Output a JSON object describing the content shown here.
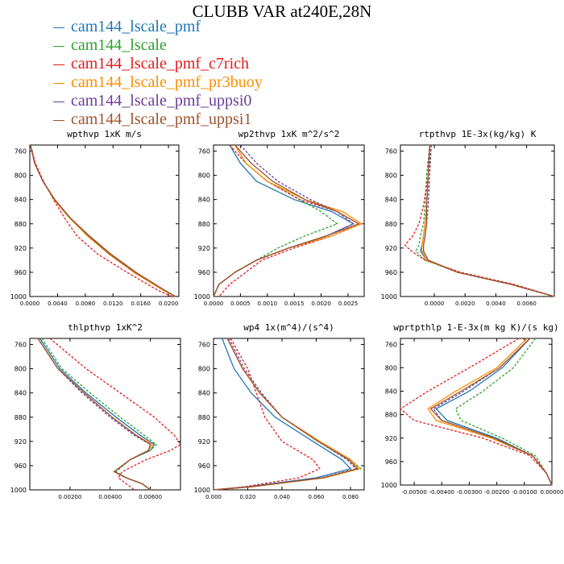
{
  "title": "CLUBB VAR at240E,28N",
  "legend": [
    {
      "label": "cam144_lscale_pmf",
      "color": "#1f77b4"
    },
    {
      "label": "cam144_lscale",
      "color": "#2ca02c"
    },
    {
      "label": "cam144_lscale_pmf_c7rich",
      "color": "#e41a1c"
    },
    {
      "label": "cam144_lscale_pmf_pr3buoy",
      "color": "#ff8c00"
    },
    {
      "label": "cam144_lscale_pmf_uppsi0",
      "color": "#6a3d9a"
    },
    {
      "label": "cam144_lscale_pmf_uppsi1",
      "color": "#a0522d"
    }
  ],
  "y_ticks": [
    "760",
    "800",
    "840",
    "880",
    "920",
    "960",
    "1000"
  ],
  "chart_data": [
    {
      "type": "line",
      "title": "wpthvp   1xK m/s",
      "ylim": [
        750,
        1000
      ],
      "y_reversed": true,
      "xlim": [
        0,
        0.0215
      ],
      "x_ticks": [
        0,
        0.004,
        0.008,
        0.012,
        0.016,
        0.02
      ],
      "x_tick_labels": [
        "0.0000",
        "0.0040",
        "0.0080",
        "0.0120",
        "0.0160",
        "0.0200"
      ],
      "y": [
        750,
        780,
        810,
        840,
        870,
        900,
        930,
        960,
        990,
        1000
      ],
      "series": [
        {
          "values": [
            0.0001,
            0.0007,
            0.0019,
            0.0036,
            0.0058,
            0.0085,
            0.0116,
            0.0152,
            0.0195,
            0.021
          ]
        },
        {
          "values": [
            0.0001,
            0.0007,
            0.0019,
            0.0035,
            0.0057,
            0.0084,
            0.0114,
            0.015,
            0.0193,
            0.021
          ]
        },
        {
          "values": [
            0.0001,
            0.0008,
            0.002,
            0.0034,
            0.005,
            0.0068,
            0.0098,
            0.014,
            0.0185,
            0.0205
          ],
          "dashed": true
        },
        {
          "values": [
            0.0001,
            0.0007,
            0.0019,
            0.0035,
            0.0057,
            0.0083,
            0.0114,
            0.015,
            0.0193,
            0.021
          ]
        },
        {
          "values": [
            0.0001,
            0.0007,
            0.0019,
            0.0036,
            0.0058,
            0.0085,
            0.0116,
            0.0152,
            0.0195,
            0.021
          ],
          "dashed": true
        },
        {
          "values": [
            0.0001,
            0.0007,
            0.0019,
            0.0036,
            0.0058,
            0.0086,
            0.0117,
            0.0153,
            0.0195,
            0.021
          ]
        }
      ]
    },
    {
      "type": "line",
      "title": "wp2thvp   1xK m^2/s^2",
      "ylim": [
        750,
        1000
      ],
      "y_reversed": true,
      "xlim": [
        0,
        0.0028
      ],
      "x_ticks": [
        0,
        0.0005,
        0.001,
        0.0015,
        0.002,
        0.0025
      ],
      "x_tick_labels": [
        "0.0000",
        "0.0005",
        "0.0010",
        "0.0015",
        "0.0020",
        "0.0025"
      ],
      "y": [
        750,
        780,
        810,
        840,
        860,
        880,
        900,
        920,
        940,
        960,
        980,
        1000
      ],
      "series": [
        {
          "values": [
            0.0003,
            0.0005,
            0.0008,
            0.0015,
            0.0022,
            0.0026,
            0.0021,
            0.0014,
            0.0008,
            0.0004,
            0.0001,
            0
          ]
        },
        {
          "values": [
            0.0004,
            0.0006,
            0.001,
            0.0016,
            0.002,
            0.0023,
            0.0017,
            0.0012,
            0.0008,
            0.0004,
            0.0001,
            0
          ],
          "dashed": true
        },
        {
          "values": [
            0.0003,
            0.0006,
            0.001,
            0.0016,
            0.0023,
            0.0027,
            0.0022,
            0.0015,
            0.0009,
            0.0006,
            0.0003,
            0.0001
          ],
          "dashed": true
        },
        {
          "values": [
            0.0004,
            0.0006,
            0.001,
            0.0017,
            0.0024,
            0.00275,
            0.0022,
            0.0014,
            0.0008,
            0.0004,
            0.0001,
            0
          ]
        },
        {
          "values": [
            0.0005,
            0.0008,
            0.0012,
            0.0018,
            0.0023,
            0.0026,
            0.0021,
            0.0014,
            0.0008,
            0.0004,
            0.0001,
            0
          ],
          "dashed": true
        },
        {
          "values": [
            0.0004,
            0.0007,
            0.0011,
            0.0017,
            0.0023,
            0.0027,
            0.0021,
            0.0014,
            0.0008,
            0.0004,
            0.0001,
            0
          ]
        }
      ]
    },
    {
      "type": "line",
      "title": "rtpthvp   1E-3x(kg/kg) K",
      "ylim": [
        750,
        1000
      ],
      "y_reversed": true,
      "xlim": [
        -0.0022,
        0.0078
      ],
      "x_ticks": [
        0,
        0.002,
        0.004,
        0.006
      ],
      "x_tick_labels": [
        "0.0000",
        "0.0020",
        "0.0040",
        "0.0060"
      ],
      "y": [
        750,
        800,
        850,
        880,
        900,
        915,
        925,
        940,
        960,
        980,
        1000
      ],
      "series": [
        {
          "values": [
            -0.0003,
            -0.0004,
            -0.0005,
            -0.0006,
            -0.0007,
            -0.0008,
            -0.0009,
            -0.0005,
            0.0015,
            0.005,
            0.0078
          ]
        },
        {
          "values": [
            -0.0003,
            -0.0005,
            -0.0006,
            -0.0007,
            -0.0009,
            -0.001,
            -0.0012,
            -0.0006,
            0.0015,
            0.005,
            0.0078
          ],
          "dashed": true
        },
        {
          "values": [
            -0.0002,
            -0.0004,
            -0.0007,
            -0.001,
            -0.0014,
            -0.0019,
            -0.0015,
            -0.0006,
            0.0017,
            0.0052,
            0.0078
          ],
          "dashed": true
        },
        {
          "values": [
            -0.0003,
            -0.0004,
            -0.0005,
            -0.0006,
            -0.0007,
            -0.0008,
            -0.0008,
            -0.0005,
            0.0015,
            0.005,
            0.0078
          ]
        },
        {
          "values": [
            -0.0002,
            -0.0003,
            -0.0004,
            -0.0005,
            -0.0006,
            -0.0007,
            -0.0007,
            -0.0004,
            0.0015,
            0.005,
            0.0078
          ],
          "dashed": true
        },
        {
          "values": [
            -0.0003,
            -0.0004,
            -0.0005,
            -0.0005,
            -0.0006,
            -0.0007,
            -0.0007,
            -0.0004,
            0.0015,
            0.005,
            0.0078
          ]
        }
      ]
    },
    {
      "type": "line",
      "title": "thlpthvp   1xK^2",
      "ylim": [
        750,
        1000
      ],
      "y_reversed": true,
      "xlim": [
        0,
        0.0075
      ],
      "x_ticks": [
        0.002,
        0.004,
        0.006
      ],
      "x_tick_labels": [
        "0.00200",
        "0.00400",
        "0.00600"
      ],
      "y": [
        750,
        800,
        840,
        880,
        910,
        925,
        935,
        950,
        970,
        980,
        990,
        1000
      ],
      "series": [
        {
          "values": [
            0.0005,
            0.0015,
            0.0028,
            0.0043,
            0.0055,
            0.0062,
            0.006,
            0.005,
            0.0042,
            0.0048,
            0.0056,
            0.006
          ]
        },
        {
          "values": [
            0.0006,
            0.0016,
            0.003,
            0.0045,
            0.0057,
            0.0063,
            0.006,
            0.005,
            0.0043,
            0.0048,
            0.0056,
            0.006
          ],
          "dashed": true
        },
        {
          "values": [
            0.001,
            0.0028,
            0.0045,
            0.0062,
            0.0072,
            0.0075,
            0.007,
            0.0058,
            0.0046,
            0.0044,
            0.0048,
            0.0052
          ],
          "dashed": true
        },
        {
          "values": [
            0.0004,
            0.0014,
            0.0027,
            0.0041,
            0.0053,
            0.0061,
            0.0059,
            0.005,
            0.0042,
            0.0048,
            0.0056,
            0.006
          ]
        },
        {
          "values": [
            0.0004,
            0.0014,
            0.0026,
            0.004,
            0.0052,
            0.006,
            0.0059,
            0.005,
            0.0042,
            0.0048,
            0.0056,
            0.006
          ],
          "dashed": true
        },
        {
          "values": [
            0.0004,
            0.0014,
            0.0027,
            0.0041,
            0.0053,
            0.006,
            0.0059,
            0.005,
            0.0042,
            0.0048,
            0.0056,
            0.006
          ]
        }
      ]
    },
    {
      "type": "line",
      "title": "wp4   1x(m^4)/(s^4)",
      "ylim": [
        750,
        1000
      ],
      "y_reversed": true,
      "xlim": [
        0,
        0.088
      ],
      "x_ticks": [
        0,
        0.02,
        0.04,
        0.06,
        0.08
      ],
      "x_tick_labels": [
        "0.000",
        "0.020",
        "0.040",
        "0.060",
        "0.080"
      ],
      "y": [
        750,
        800,
        840,
        880,
        920,
        950,
        965,
        980,
        995,
        1000
      ],
      "series": [
        {
          "values": [
            0.005,
            0.012,
            0.022,
            0.036,
            0.058,
            0.075,
            0.08,
            0.06,
            0.02,
            0
          ]
        },
        {
          "values": [
            0.008,
            0.017,
            0.027,
            0.04,
            0.062,
            0.08,
            0.086,
            0.065,
            0.022,
            0
          ],
          "dashed": true
        },
        {
          "values": [
            0.01,
            0.02,
            0.025,
            0.03,
            0.04,
            0.058,
            0.062,
            0.05,
            0.018,
            0
          ],
          "dashed": true
        },
        {
          "values": [
            0.008,
            0.017,
            0.027,
            0.04,
            0.062,
            0.08,
            0.085,
            0.065,
            0.022,
            0
          ]
        },
        {
          "values": [
            0.009,
            0.018,
            0.028,
            0.04,
            0.061,
            0.078,
            0.083,
            0.063,
            0.021,
            0
          ],
          "dashed": true
        },
        {
          "values": [
            0.008,
            0.017,
            0.027,
            0.04,
            0.061,
            0.079,
            0.084,
            0.064,
            0.022,
            0
          ]
        }
      ]
    },
    {
      "type": "line",
      "title": "wprtpthlp   1-E-3x(m kg K)/(s kg)",
      "ylim": [
        750,
        1000
      ],
      "y_reversed": true,
      "xlim": [
        -0.0055,
        0
      ],
      "x_ticks": [
        -0.005,
        -0.004,
        -0.003,
        -0.002,
        -0.001,
        0
      ],
      "x_tick_labels": [
        "-0.00500",
        "-0.00400",
        "-0.00300",
        "-0.00200",
        "-0.00100",
        "0.00000"
      ],
      "y": [
        750,
        800,
        840,
        870,
        890,
        920,
        950,
        980,
        1000
      ],
      "series": [
        {
          "values": [
            -0.0008,
            -0.0018,
            -0.003,
            -0.0042,
            -0.0038,
            -0.002,
            -0.0007,
            -0.0002,
            0
          ]
        },
        {
          "values": [
            -0.0006,
            -0.0014,
            -0.0025,
            -0.0035,
            -0.0033,
            -0.0018,
            -0.0006,
            -0.0002,
            0
          ],
          "dashed": true
        },
        {
          "values": [
            -0.0012,
            -0.003,
            -0.0045,
            -0.0055,
            -0.005,
            -0.0025,
            -0.0008,
            -0.0002,
            0
          ],
          "dashed": true
        },
        {
          "values": [
            -0.0009,
            -0.002,
            -0.0035,
            -0.0045,
            -0.0042,
            -0.0022,
            -0.0007,
            -0.0002,
            0
          ]
        },
        {
          "values": [
            -0.0008,
            -0.0019,
            -0.0032,
            -0.0043,
            -0.004,
            -0.0021,
            -0.0007,
            -0.0002,
            0
          ],
          "dashed": true
        },
        {
          "values": [
            -0.0008,
            -0.0019,
            -0.0033,
            -0.0044,
            -0.004,
            -0.0021,
            -0.0007,
            -0.0002,
            0
          ]
        }
      ]
    }
  ]
}
